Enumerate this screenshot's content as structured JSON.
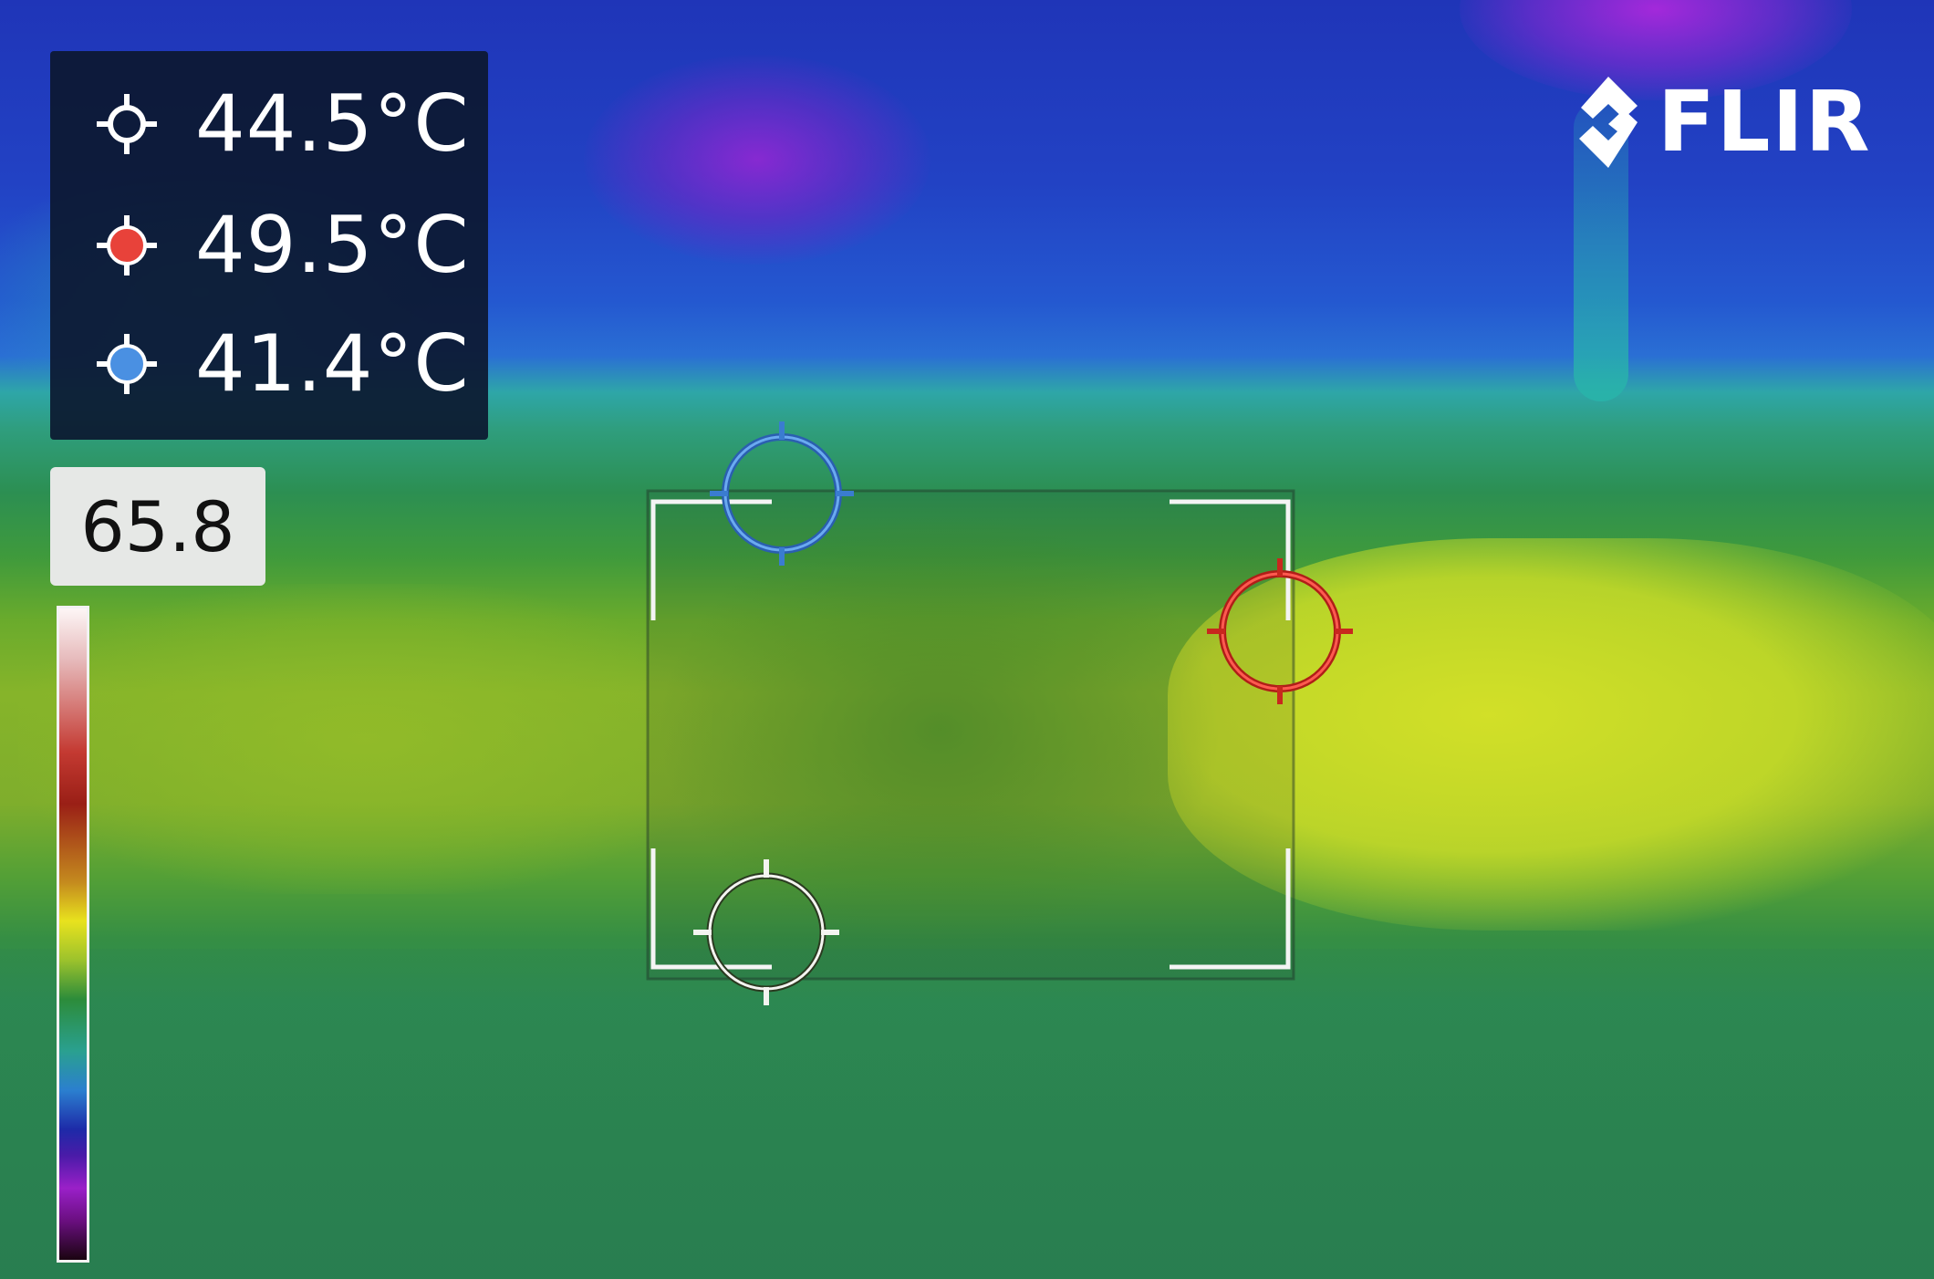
{
  "readout": {
    "center_spot": "44.5°C",
    "hot_spot": "49.5°C",
    "cold_spot": "41.4°C"
  },
  "scale": {
    "max_value": "65.8"
  },
  "brand": {
    "logo_text": "FLIR"
  },
  "colors": {
    "center_marker": "#ffffff",
    "hot_marker": "#e8423a",
    "cold_marker": "#4a90e2",
    "panel_bg": "#0c1830"
  },
  "icons": {
    "center": "crosshair-white-icon",
    "hot": "crosshair-red-icon",
    "cold": "crosshair-blue-icon"
  }
}
